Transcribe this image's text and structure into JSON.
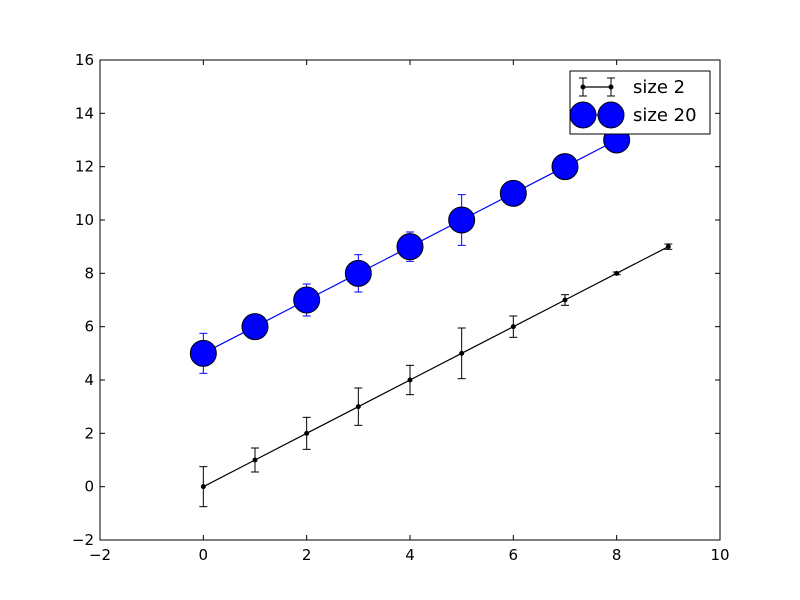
{
  "chart_data": {
    "type": "line",
    "title": "",
    "xlabel": "",
    "ylabel": "",
    "xlim": [
      -2,
      10
    ],
    "ylim": [
      -2,
      16
    ],
    "xticks": [
      -2,
      0,
      2,
      4,
      6,
      8,
      10
    ],
    "yticks": [
      -2,
      0,
      2,
      4,
      6,
      8,
      10,
      12,
      14,
      16
    ],
    "xtick_labels": [
      "−2",
      "0",
      "2",
      "4",
      "6",
      "8",
      "10"
    ],
    "ytick_labels": [
      "−2",
      "0",
      "2",
      "4",
      "6",
      "8",
      "10",
      "12",
      "14",
      "16"
    ],
    "grid": false,
    "legend_position": "top-right",
    "series": [
      {
        "name": "size 2",
        "color": "#000000",
        "marker": "circle",
        "marker_size": "small",
        "x": [
          0,
          1,
          2,
          3,
          4,
          5,
          6,
          7,
          8,
          9
        ],
        "y": [
          0,
          1,
          2,
          3,
          4,
          5,
          6,
          7,
          8,
          9
        ],
        "yerr": [
          0.75,
          0.45,
          0.6,
          0.7,
          0.55,
          0.95,
          0.4,
          0.2,
          0.05,
          0.1
        ]
      },
      {
        "name": "size 20",
        "color": "#0000ff",
        "marker": "circle",
        "marker_size": "large",
        "x": [
          0,
          1,
          2,
          3,
          4,
          5,
          6,
          7,
          8,
          9
        ],
        "y": [
          5,
          6,
          7,
          8,
          9,
          10,
          11,
          12,
          13,
          14
        ],
        "yerr": [
          0.75,
          0.45,
          0.6,
          0.7,
          0.55,
          0.95,
          0.4,
          0.2,
          0.05,
          0.1
        ]
      }
    ]
  }
}
